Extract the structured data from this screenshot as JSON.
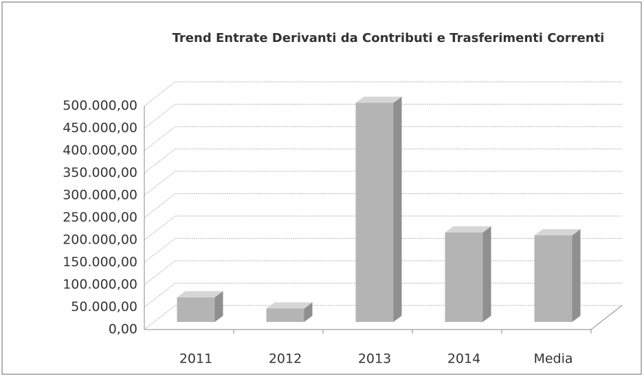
{
  "chart_data": {
    "type": "bar",
    "title": "Trend Entrate Derivanti da Contributi e Trasferimenti Correnti",
    "categories": [
      "2011",
      "2012",
      "2013",
      "2014",
      "Media"
    ],
    "values": [
      55000,
      30000,
      490000,
      200000,
      193750
    ],
    "color": "#b4b4b4",
    "ylim": [
      0,
      500000
    ],
    "yticks": [
      {
        "value": 0,
        "label": "0,00"
      },
      {
        "value": 50000,
        "label": "50.000,00"
      },
      {
        "value": 100000,
        "label": "100.000,00"
      },
      {
        "value": 150000,
        "label": "150.000,00"
      },
      {
        "value": 200000,
        "label": "200.000,00"
      },
      {
        "value": 250000,
        "label": "250.000,00"
      },
      {
        "value": 300000,
        "label": "300.000,00"
      },
      {
        "value": 350000,
        "label": "350.000,00"
      },
      {
        "value": 400000,
        "label": "400.000,00"
      },
      {
        "value": 450000,
        "label": "450.000,00"
      },
      {
        "value": 500000,
        "label": "500.000,00"
      }
    ],
    "grid": true
  }
}
